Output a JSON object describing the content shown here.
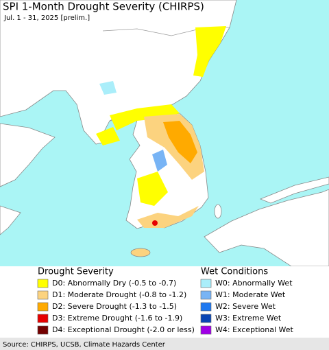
{
  "header": {
    "title": "SPI 1-Month Drought Severity (CHIRPS)",
    "subtitle": "Jul. 1 - 31, 2025 [prelim.]"
  },
  "legend": {
    "drought": {
      "title": "Drought Severity",
      "items": [
        {
          "label": "D0: Abnormally Dry (-0.5 to -0.7)",
          "color": "#ffff00"
        },
        {
          "label": "D1: Moderate Drought (-0.8 to -1.2)",
          "color": "#fcd37f"
        },
        {
          "label": "D2: Severe Drought (-1.3 to -1.5)",
          "color": "#ffaa00"
        },
        {
          "label": "D3: Extreme Drought (-1.6 to -1.9)",
          "color": "#e60000"
        },
        {
          "label": "D4: Exceptional Drought (-2.0 or less)",
          "color": "#730000"
        }
      ]
    },
    "wet": {
      "title": "Wet Conditions",
      "items": [
        {
          "label": "W0: Abnormally Wet",
          "color": "#aaeefa"
        },
        {
          "label": "W1: Moderate Wet",
          "color": "#78b4f5"
        },
        {
          "label": "W2: Severe Wet",
          "color": "#1e78f0"
        },
        {
          "label": "W3: Extreme Wet",
          "color": "#0a46b4"
        },
        {
          "label": "W4: Exceptional Wet",
          "color": "#a000e6"
        }
      ]
    }
  },
  "footer": {
    "source": "Source: CHIRPS, UCSB, Climate Hazards Center"
  }
}
